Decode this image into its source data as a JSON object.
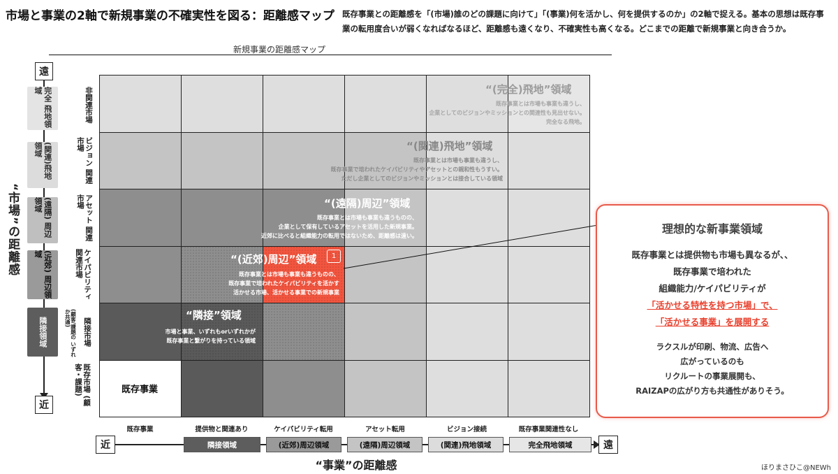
{
  "title": "市場と事業の2軸で新規事業の不確実性を図る：距離感マップ",
  "description": "既存事業との距離感を「(市場)誰のどの課題に向けて」「(事業)何を活かし、何を提供するのか」の2軸で捉える。基本の思想は既存事業の転用度合いが弱くなればなるほど、距離感も遠くなり、不確実性も高くなる。どこまでの距離で新規事業と向き合うか。",
  "map_title": "新規事業の距離感マップ",
  "market_axis": {
    "title": "“市場”の距離感",
    "far": "遠",
    "near": "近",
    "zones": [
      "完全 飛地領域",
      "(関連)飛地 領域",
      "(遠隔) 周辺領域",
      "(近郊) 周辺領域",
      "隣接領域"
    ]
  },
  "rows": [
    {
      "label": "非関連市場",
      "sub": ""
    },
    {
      "label": "ビジョン 関連市場",
      "sub": ""
    },
    {
      "label": "アセット 関連市場",
      "sub": ""
    },
    {
      "label": "ケイパビリティ 関連市場",
      "sub": ""
    },
    {
      "label": "隣接市場",
      "sub": "(顧客/課題の いずれか共通)"
    },
    {
      "label": "既存市場 (顧客・課題)",
      "sub": ""
    }
  ],
  "columns": [
    "既存事業",
    "提供物と関連あり",
    "ケイパビリティ転用",
    "アセット転用",
    "ビジョン接続",
    "既存事業関連性なし"
  ],
  "business_axis": {
    "title": "“事業”の距離感",
    "near": "近",
    "far": "遠",
    "zones": [
      "隣接領域",
      "(近郊)周辺領域",
      "(遠隔)周辺領域",
      "(関連)飛地領域",
      "完全飛地領域"
    ]
  },
  "existing_business": "既存事業",
  "regions": {
    "complete_enclave": {
      "title": "“(完全)飛地”領域",
      "lines": [
        "既存事業とは市場も事業も違うし、",
        "企業としてのビジョンやミッションとの関連性も見出せない。",
        "完全なる飛地。"
      ]
    },
    "related_enclave": {
      "title": "“(関連)飛地”領域",
      "lines": [
        "既存事業とは市場も事業も違うし、",
        "既存事業で培われたケイパビリティやアセットとの親和性もうすい。",
        "ただし企業としてのビジョンやミッションとは接合している領域"
      ]
    },
    "remote_periphery": {
      "title": "“(遠隔)周辺”領域",
      "lines": [
        "既存事業とは市場も事業も違うものの、",
        "企業として保有しているアセットを活用した新規事業。",
        "近郊に比べると組織能力の転用ではないため、距離感は遠い。"
      ]
    },
    "suburb_periphery": {
      "title": "“(近郊)周辺”領域",
      "badge": "1",
      "lines": [
        "既存事業とは市場も事業も違うものの、",
        "既存事業で培われたケイパビリティを活かす",
        "活かせる市場、活かせる事業での新規事業"
      ]
    },
    "adjacent": {
      "title": "“隣接”領域",
      "lines": [
        "市場と事業、いずれもorいずれかが",
        "既存事業と繋がりを持っている領域"
      ]
    }
  },
  "callout": {
    "title": "理想的な新事業領域",
    "lines": [
      "既存事業とは提供物も市場も異なるが、、",
      "既存事業で培われた",
      "組織能力/ケイパビリティが"
    ],
    "red_lines": [
      "「活かせる特性を持つ市場」で、",
      "「活かせる事業」を展開する"
    ],
    "note_lines": [
      "ラクスルが印刷、物流、広告へ",
      "広がっているのも",
      "リクルートの事業展開も、",
      "RAIZAPの広がり方も共通性がありそう。"
    ]
  },
  "credit": "ほりまさひこ@NEWh",
  "colors": {
    "accent_red": "#f2553f",
    "callout_border": "#e85a4a",
    "dark_gray": "#5a5a5a",
    "mid_gray": "#8e8e8e",
    "light_gray": "#c4c4c4",
    "pale_gray": "#dedede",
    "faint_gray": "#e6e6e6"
  }
}
